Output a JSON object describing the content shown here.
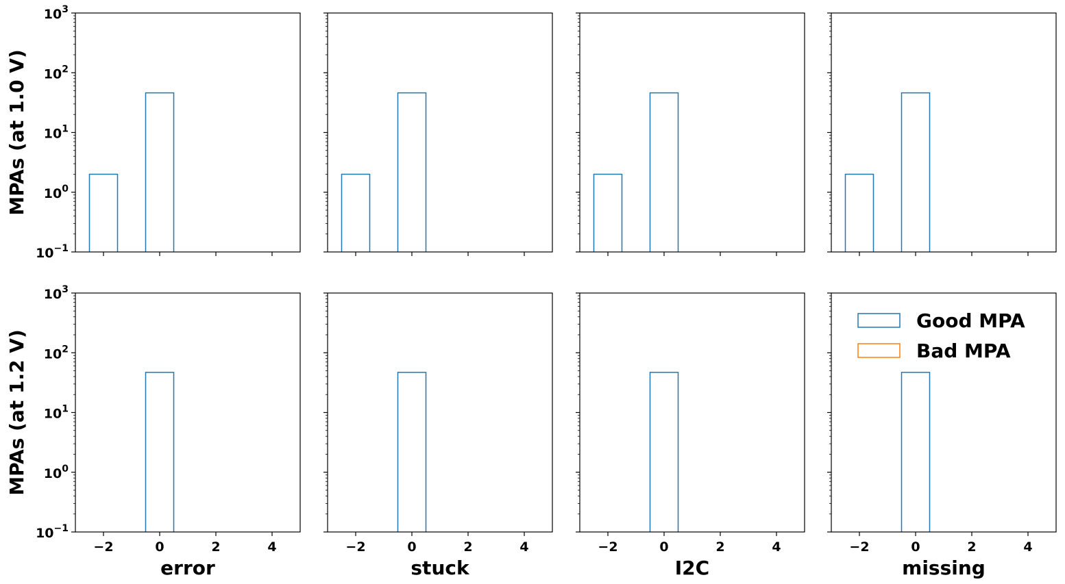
{
  "chart_data": {
    "type": "histogram-grid",
    "rows": 2,
    "cols": 4,
    "x_axis": {
      "xlim": [
        -3,
        5
      ],
      "ticks": [
        -2,
        0,
        2,
        4
      ],
      "tick_labels": [
        "−2",
        "0",
        "2",
        "4"
      ]
    },
    "y_axis": {
      "scale": "log",
      "ylim": [
        0.1,
        1000
      ],
      "major_ticks": [
        0.1,
        1,
        10,
        100,
        1000
      ],
      "tick_labels": [
        {
          "base": "10",
          "exp": "−1"
        },
        {
          "base": "10",
          "exp": "0"
        },
        {
          "base": "10",
          "exp": "1"
        },
        {
          "base": "10",
          "exp": "2"
        },
        {
          "base": "10",
          "exp": "3"
        }
      ]
    },
    "row_labels": [
      "MPAs (at 1.0 V)",
      "MPAs (at 1.2 V)"
    ],
    "col_labels": [
      "error",
      "stuck",
      "I2C",
      "missing"
    ],
    "series": [
      {
        "name": "Good MPA",
        "color": "#1f77b4"
      },
      {
        "name": "Bad MPA",
        "color": "#ff7f0e"
      }
    ],
    "bin_width": 1,
    "panels": [
      {
        "row": 0,
        "col": 0,
        "bars": [
          {
            "series": 0,
            "x": -2,
            "count": 2
          },
          {
            "series": 0,
            "x": 0,
            "count": 46
          }
        ]
      },
      {
        "row": 0,
        "col": 1,
        "bars": [
          {
            "series": 0,
            "x": -2,
            "count": 2
          },
          {
            "series": 0,
            "x": 0,
            "count": 46
          }
        ]
      },
      {
        "row": 0,
        "col": 2,
        "bars": [
          {
            "series": 0,
            "x": -2,
            "count": 2
          },
          {
            "series": 0,
            "x": 0,
            "count": 46
          }
        ]
      },
      {
        "row": 0,
        "col": 3,
        "bars": [
          {
            "series": 0,
            "x": -2,
            "count": 2
          },
          {
            "series": 0,
            "x": 0,
            "count": 46
          }
        ]
      },
      {
        "row": 1,
        "col": 0,
        "bars": [
          {
            "series": 0,
            "x": 0,
            "count": 47
          }
        ]
      },
      {
        "row": 1,
        "col": 1,
        "bars": [
          {
            "series": 0,
            "x": 0,
            "count": 47
          }
        ]
      },
      {
        "row": 1,
        "col": 2,
        "bars": [
          {
            "series": 0,
            "x": 0,
            "count": 47
          }
        ]
      },
      {
        "row": 1,
        "col": 3,
        "bars": [
          {
            "series": 0,
            "x": 0,
            "count": 47
          }
        ]
      }
    ],
    "legend": {
      "panel": [
        1,
        3
      ],
      "placement": "upper-right",
      "frameon": false
    },
    "grid": false
  }
}
